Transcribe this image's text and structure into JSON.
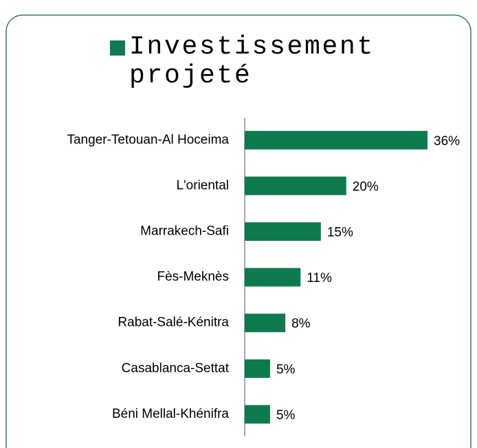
{
  "chart_data": {
    "type": "bar",
    "orientation": "horizontal",
    "categories": [
      "Tanger-Tetouan-Al Hoceima",
      "L'oriental",
      "Marrakech-Safi",
      "Fès-Meknès",
      "Rabat-Salé-Kénitra",
      "Casablanca-Settat",
      "Béni Mellal-Khénifra"
    ],
    "series": [
      {
        "name": "Investissement projeté",
        "color": "#0e7a4e",
        "values": [
          36,
          20,
          15,
          11,
          8,
          5,
          5
        ],
        "value_labels": [
          "36%",
          "20%",
          "15%",
          "11%",
          "8%",
          "5%",
          "5%"
        ]
      }
    ]
  }
}
